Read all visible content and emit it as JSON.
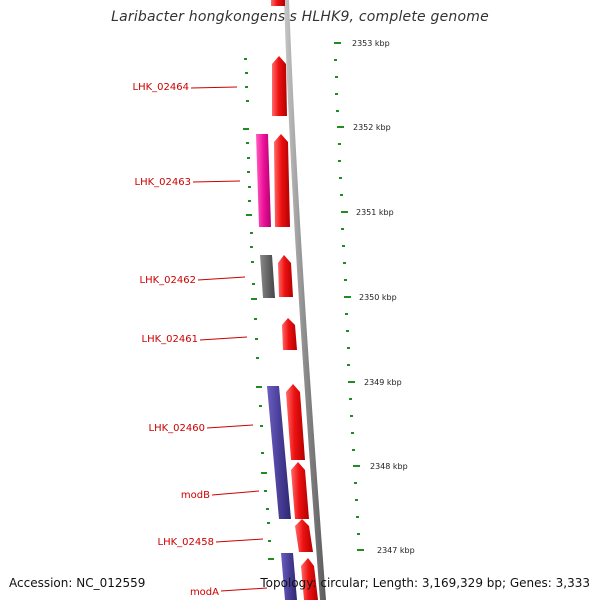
{
  "title": "Laribacter hongkongensis HLHK9, complete genome",
  "footer": {
    "accession": "Accession: NC_012559",
    "topology": "Topology: circular; Length: 3,169,329 bp; Genes: 3,333"
  },
  "colors": {
    "forward_gene": "#ee1111",
    "pink_gene": "#ee1199",
    "gray_gene": "#666666",
    "purple_gene": "#4a3f99",
    "label": "#cc0000",
    "tick": "#228b22",
    "backbone": "#8c8c8c"
  },
  "gene_labels": [
    "LHK_02464",
    "LHK_02463",
    "LHK_02462",
    "LHK_02461",
    "LHK_02460",
    "modB",
    "LHK_02458",
    "modA"
  ],
  "scale_labels": [
    "2353 kbp",
    "2352 kbp",
    "2351 kbp",
    "2350 kbp",
    "2349 kbp",
    "2348 kbp",
    "2347 kbp"
  ]
}
